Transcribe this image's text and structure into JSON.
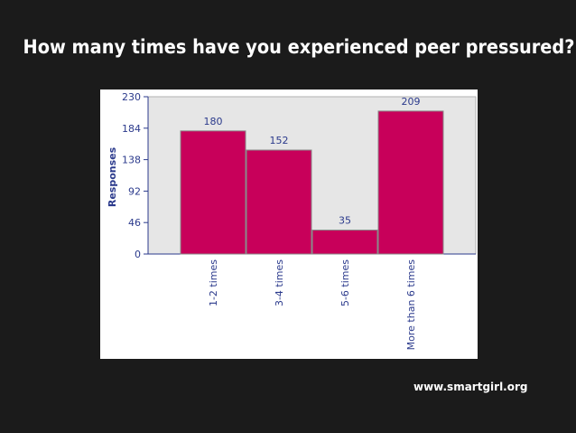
{
  "slide": {
    "title": "How many times have you experienced peer pressured?",
    "source": "www.smartgirl.org"
  },
  "colors": {
    "background": "#1b1b1b",
    "bar": "#c8005a",
    "bar_stroke": "#8a8a8a",
    "plot_background": "#e6e6e6",
    "axis_text": "#2b3a8c",
    "value_label": "#2b3a8c"
  },
  "chart_data": {
    "type": "bar",
    "title": "",
    "xlabel": "",
    "ylabel": "Responses",
    "categories": [
      "1-2 times",
      "3-4 times",
      "5-6 times",
      "More than 6 times"
    ],
    "values": [
      180,
      152,
      35,
      209
    ],
    "ylim": [
      0,
      230
    ],
    "yticks": [
      0,
      46,
      92,
      138,
      184,
      230
    ],
    "grid": false,
    "legend": "none",
    "data_labels": true,
    "x_tick_rotation": "vertical"
  }
}
